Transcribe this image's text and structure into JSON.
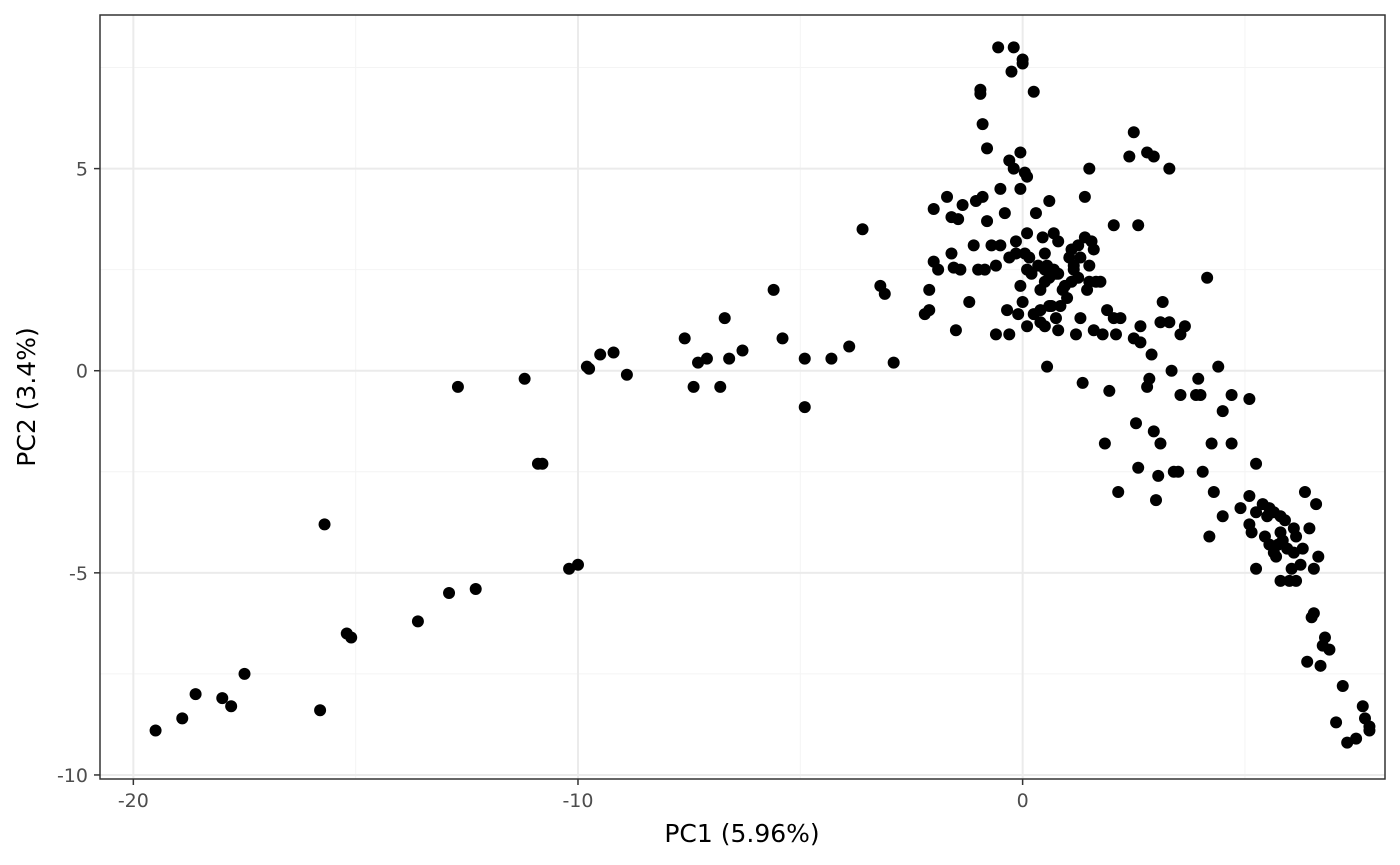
{
  "chart_data": {
    "type": "scatter",
    "title": "",
    "xlabel": "PC1 (5.96%)",
    "ylabel": "PC2 (3.4%)",
    "xlim": [
      -20.75,
      8.15
    ],
    "ylim": [
      -10.1,
      8.8
    ],
    "xticks": [
      -20,
      -10,
      0
    ],
    "xtick_labels": [
      "-20",
      "-10",
      "0"
    ],
    "yticks": [
      -10,
      -5,
      0,
      5
    ],
    "ytick_labels": [
      "-10",
      "-5",
      "0",
      "5"
    ],
    "grid": true,
    "point_color": "#000000",
    "panel_border_color": "#333333",
    "grid_major_color": "#ebebeb",
    "grid_minor_color": "#f4f4f4",
    "points": [
      [
        -19.5,
        -8.9
      ],
      [
        -18.9,
        -8.6
      ],
      [
        -18.6,
        -8.0
      ],
      [
        -18.0,
        -8.1
      ],
      [
        -17.8,
        -8.3
      ],
      [
        -17.5,
        -7.5
      ],
      [
        -15.8,
        -8.4
      ],
      [
        -15.7,
        -3.8
      ],
      [
        -15.2,
        -6.5
      ],
      [
        -15.1,
        -6.6
      ],
      [
        -13.6,
        -6.2
      ],
      [
        -12.9,
        -5.5
      ],
      [
        -12.7,
        -0.4
      ],
      [
        -12.3,
        -5.4
      ],
      [
        -11.2,
        -0.2
      ],
      [
        -10.9,
        -2.3
      ],
      [
        -10.8,
        -2.3
      ],
      [
        -10.2,
        -4.9
      ],
      [
        -10.0,
        -4.8
      ],
      [
        -9.8,
        0.1
      ],
      [
        -9.75,
        0.05
      ],
      [
        -9.5,
        0.4
      ],
      [
        -9.2,
        0.45
      ],
      [
        -8.9,
        -0.1
      ],
      [
        -7.6,
        0.8
      ],
      [
        -7.4,
        -0.4
      ],
      [
        -7.3,
        0.2
      ],
      [
        -7.1,
        0.3
      ],
      [
        -6.8,
        -0.4
      ],
      [
        -6.7,
        1.3
      ],
      [
        -6.6,
        0.3
      ],
      [
        -6.3,
        0.5
      ],
      [
        -5.6,
        2.0
      ],
      [
        -5.4,
        0.8
      ],
      [
        -4.9,
        0.3
      ],
      [
        -4.9,
        -0.9
      ],
      [
        -4.3,
        0.3
      ],
      [
        -3.9,
        0.6
      ],
      [
        -3.6,
        3.5
      ],
      [
        -3.2,
        2.1
      ],
      [
        -3.1,
        1.9
      ],
      [
        -2.9,
        0.2
      ],
      [
        -2.2,
        1.4
      ],
      [
        -2.1,
        2.0
      ],
      [
        -2.1,
        1.5
      ],
      [
        -2.0,
        4.0
      ],
      [
        -2.0,
        2.7
      ],
      [
        -1.9,
        2.5
      ],
      [
        -1.7,
        4.3
      ],
      [
        -1.6,
        2.9
      ],
      [
        -1.6,
        3.8
      ],
      [
        -1.55,
        2.55
      ],
      [
        -1.5,
        1.0
      ],
      [
        -1.45,
        3.75
      ],
      [
        -1.4,
        2.5
      ],
      [
        -1.35,
        4.1
      ],
      [
        -1.2,
        1.7
      ],
      [
        -1.1,
        3.1
      ],
      [
        -1.05,
        4.2
      ],
      [
        -1.0,
        2.5
      ],
      [
        -0.95,
        6.95
      ],
      [
        -0.95,
        6.85
      ],
      [
        -0.9,
        4.3
      ],
      [
        -0.9,
        6.1
      ],
      [
        -0.85,
        2.5
      ],
      [
        -0.8,
        5.5
      ],
      [
        -0.8,
        3.7
      ],
      [
        -0.7,
        3.1
      ],
      [
        -0.6,
        2.6
      ],
      [
        -0.55,
        8.0
      ],
      [
        -0.6,
        0.9
      ],
      [
        -0.5,
        4.5
      ],
      [
        -0.5,
        3.1
      ],
      [
        -0.4,
        3.9
      ],
      [
        -0.35,
        1.5
      ],
      [
        -0.3,
        2.8
      ],
      [
        -0.3,
        0.9
      ],
      [
        -0.3,
        5.2
      ],
      [
        -0.2,
        8.0
      ],
      [
        -0.25,
        7.4
      ],
      [
        -0.2,
        5.0
      ],
      [
        -0.15,
        3.2
      ],
      [
        -0.15,
        2.9
      ],
      [
        -0.1,
        1.4
      ],
      [
        -0.05,
        2.1
      ],
      [
        -0.05,
        4.5
      ],
      [
        -0.05,
        5.4
      ],
      [
        0.0,
        1.7
      ],
      [
        0.0,
        7.7
      ],
      [
        0.0,
        7.6
      ],
      [
        0.05,
        2.9
      ],
      [
        0.05,
        4.9
      ],
      [
        0.1,
        2.5
      ],
      [
        0.1,
        1.1
      ],
      [
        0.1,
        3.4
      ],
      [
        0.1,
        4.8
      ],
      [
        0.15,
        2.8
      ],
      [
        0.2,
        2.4
      ],
      [
        0.25,
        1.4
      ],
      [
        0.25,
        6.9
      ],
      [
        0.3,
        3.9
      ],
      [
        0.35,
        2.6
      ],
      [
        0.4,
        1.2
      ],
      [
        0.4,
        2.0
      ],
      [
        0.4,
        1.5
      ],
      [
        0.45,
        3.3
      ],
      [
        0.5,
        2.2
      ],
      [
        0.5,
        2.5
      ],
      [
        0.5,
        2.9
      ],
      [
        0.5,
        1.1
      ],
      [
        0.55,
        0.1
      ],
      [
        0.55,
        2.6
      ],
      [
        0.6,
        4.2
      ],
      [
        0.6,
        1.6
      ],
      [
        0.6,
        2.3
      ],
      [
        0.65,
        1.6
      ],
      [
        0.7,
        3.4
      ],
      [
        0.7,
        2.5
      ],
      [
        0.75,
        2.4
      ],
      [
        0.75,
        1.3
      ],
      [
        0.8,
        3.2
      ],
      [
        0.8,
        2.4
      ],
      [
        0.8,
        1.0
      ],
      [
        0.85,
        1.6
      ],
      [
        0.9,
        2.0
      ],
      [
        0.95,
        2.1
      ],
      [
        1.0,
        1.8
      ],
      [
        1.05,
        2.8
      ],
      [
        1.1,
        3.0
      ],
      [
        1.1,
        2.2
      ],
      [
        1.15,
        2.5
      ],
      [
        1.15,
        2.6
      ],
      [
        1.2,
        0.9
      ],
      [
        1.25,
        2.3
      ],
      [
        1.25,
        3.1
      ],
      [
        1.3,
        2.8
      ],
      [
        1.3,
        1.3
      ],
      [
        1.35,
        -0.3
      ],
      [
        1.4,
        3.3
      ],
      [
        1.4,
        4.3
      ],
      [
        1.45,
        2.0
      ],
      [
        1.5,
        5.0
      ],
      [
        1.5,
        2.6
      ],
      [
        1.5,
        2.2
      ],
      [
        1.55,
        3.2
      ],
      [
        1.6,
        3.0
      ],
      [
        1.6,
        1.0
      ],
      [
        1.65,
        2.2
      ],
      [
        1.75,
        2.2
      ],
      [
        1.8,
        0.9
      ],
      [
        1.85,
        -1.8
      ],
      [
        1.9,
        1.5
      ],
      [
        1.95,
        -0.5
      ],
      [
        2.05,
        3.6
      ],
      [
        2.05,
        1.3
      ],
      [
        2.1,
        0.9
      ],
      [
        2.2,
        1.3
      ],
      [
        2.15,
        -3.0
      ],
      [
        2.4,
        5.3
      ],
      [
        2.5,
        5.9
      ],
      [
        2.5,
        0.8
      ],
      [
        2.55,
        -1.3
      ],
      [
        2.6,
        -2.4
      ],
      [
        2.6,
        3.6
      ],
      [
        2.65,
        0.7
      ],
      [
        2.65,
        1.1
      ],
      [
        2.8,
        5.4
      ],
      [
        2.8,
        -0.4
      ],
      [
        2.85,
        -0.2
      ],
      [
        2.9,
        0.4
      ],
      [
        2.95,
        -1.5
      ],
      [
        2.95,
        5.3
      ],
      [
        3.0,
        -3.2
      ],
      [
        3.05,
        -2.6
      ],
      [
        3.1,
        1.2
      ],
      [
        3.1,
        -1.8
      ],
      [
        3.15,
        1.7
      ],
      [
        3.3,
        5.0
      ],
      [
        3.3,
        1.2
      ],
      [
        3.35,
        0.0
      ],
      [
        3.4,
        -2.5
      ],
      [
        3.5,
        -2.5
      ],
      [
        3.55,
        0.9
      ],
      [
        3.55,
        -0.6
      ],
      [
        3.65,
        1.1
      ],
      [
        3.9,
        -0.6
      ],
      [
        3.95,
        -0.2
      ],
      [
        4.05,
        -2.5
      ],
      [
        4.0,
        -0.6
      ],
      [
        4.15,
        2.3
      ],
      [
        4.2,
        -4.1
      ],
      [
        4.25,
        -1.8
      ],
      [
        4.3,
        -3.0
      ],
      [
        4.4,
        0.1
      ],
      [
        4.5,
        -3.6
      ],
      [
        4.5,
        -1.0
      ],
      [
        4.7,
        -1.8
      ],
      [
        4.7,
        -0.6
      ],
      [
        4.9,
        -3.4
      ],
      [
        5.1,
        -3.1
      ],
      [
        5.1,
        -3.8
      ],
      [
        5.1,
        -0.7
      ],
      [
        5.15,
        -4.0
      ],
      [
        5.25,
        -3.5
      ],
      [
        5.25,
        -4.9
      ],
      [
        5.25,
        -2.3
      ],
      [
        5.4,
        -3.3
      ],
      [
        5.45,
        -4.1
      ],
      [
        5.5,
        -3.6
      ],
      [
        5.55,
        -4.3
      ],
      [
        5.55,
        -3.4
      ],
      [
        5.65,
        -3.5
      ],
      [
        5.65,
        -4.5
      ],
      [
        5.7,
        -4.6
      ],
      [
        5.75,
        -4.3
      ],
      [
        5.8,
        -4.0
      ],
      [
        5.8,
        -3.6
      ],
      [
        5.8,
        -5.2
      ],
      [
        5.85,
        -4.2
      ],
      [
        5.9,
        -3.7
      ],
      [
        5.95,
        -4.4
      ],
      [
        6.0,
        -5.2
      ],
      [
        6.05,
        -4.9
      ],
      [
        6.1,
        -3.9
      ],
      [
        6.1,
        -4.5
      ],
      [
        6.15,
        -4.1
      ],
      [
        6.15,
        -5.2
      ],
      [
        6.25,
        -4.8
      ],
      [
        6.3,
        -4.4
      ],
      [
        6.35,
        -3.0
      ],
      [
        6.4,
        -7.2
      ],
      [
        6.45,
        -3.9
      ],
      [
        6.5,
        -6.1
      ],
      [
        6.55,
        -6.0
      ],
      [
        6.55,
        -4.9
      ],
      [
        6.6,
        -3.3
      ],
      [
        6.65,
        -4.6
      ],
      [
        6.7,
        -7.3
      ],
      [
        6.75,
        -6.8
      ],
      [
        6.8,
        -6.6
      ],
      [
        6.9,
        -6.9
      ],
      [
        7.05,
        -8.7
      ],
      [
        7.2,
        -7.8
      ],
      [
        7.3,
        -9.2
      ],
      [
        7.5,
        -9.1
      ],
      [
        7.65,
        -8.3
      ],
      [
        7.7,
        -8.6
      ],
      [
        7.8,
        -8.9
      ],
      [
        7.8,
        -8.8
      ]
    ]
  }
}
